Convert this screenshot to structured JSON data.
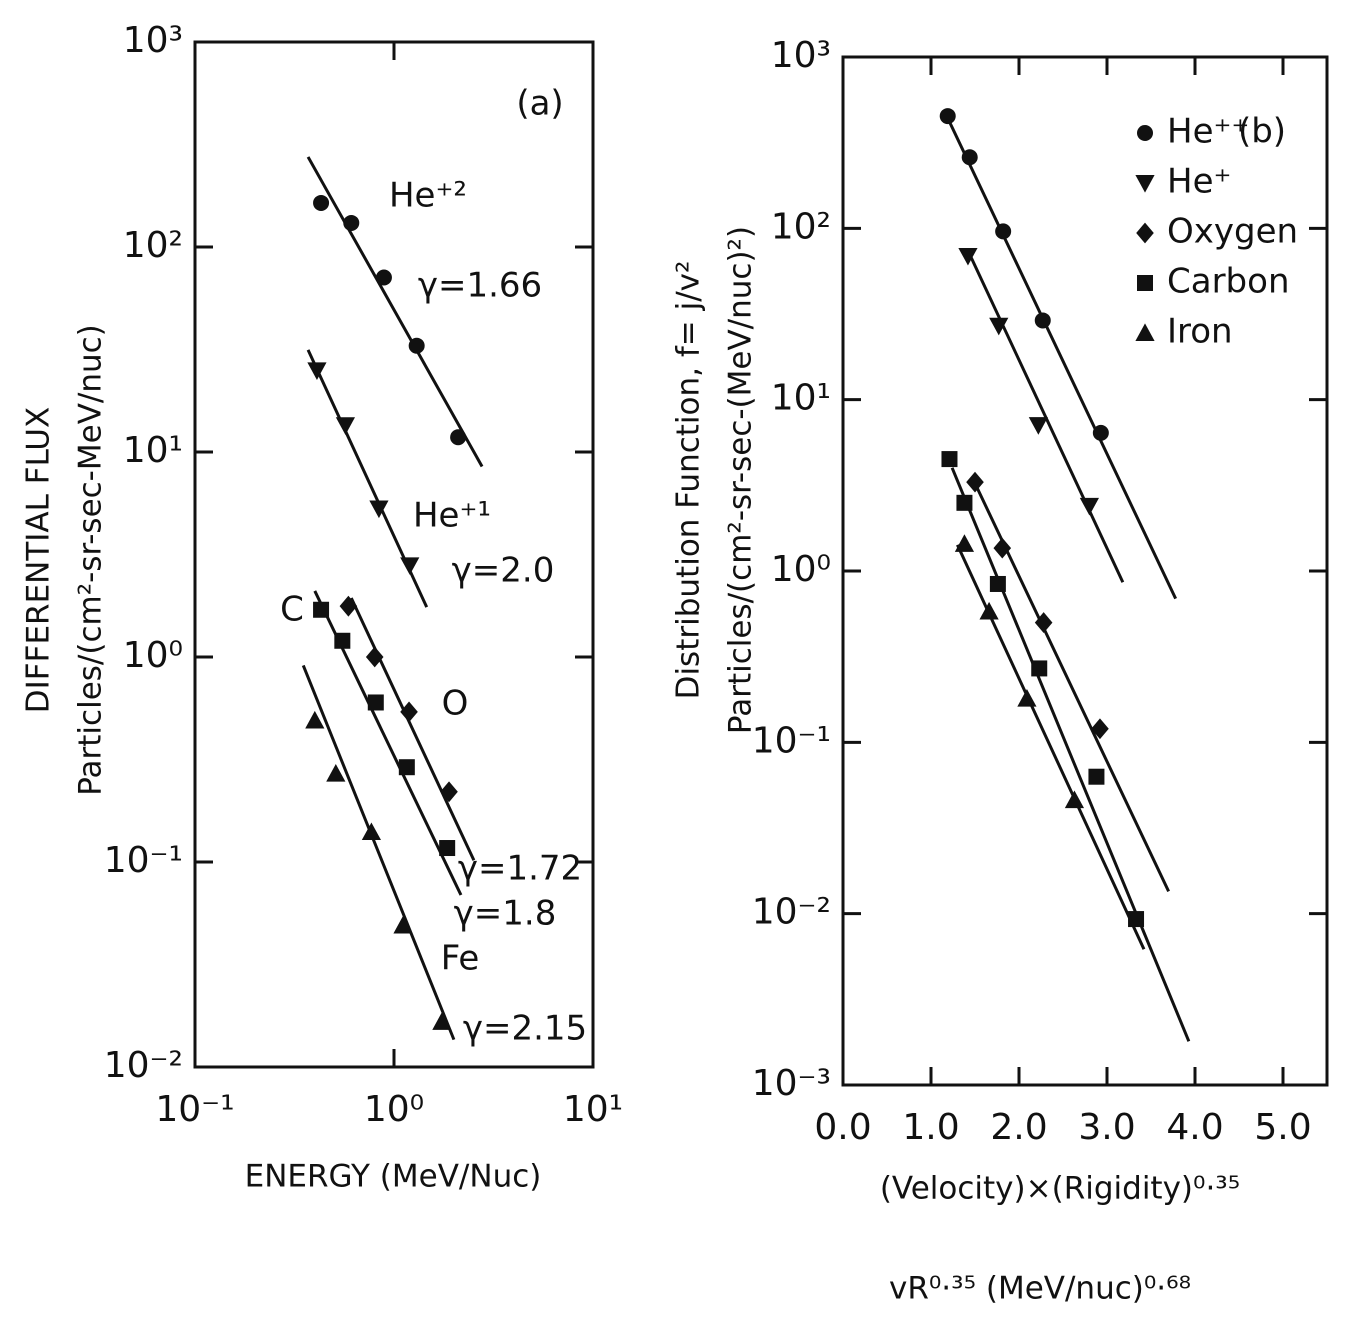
{
  "chart_data": [
    {
      "type": "scatter",
      "xscale": "log",
      "yscale": "log",
      "color": "#111111",
      "xlim": [
        0.1,
        10
      ],
      "ylim": [
        0.01,
        1000
      ],
      "xticks": [
        {
          "value": 0.1,
          "label": "10⁻¹"
        },
        {
          "value": 1,
          "label": "10⁰"
        },
        {
          "value": 10,
          "label": "10¹"
        }
      ],
      "yticks": [
        {
          "value": 0.01,
          "label": "10⁻²"
        },
        {
          "value": 0.1,
          "label": "10⁻¹"
        },
        {
          "value": 1,
          "label": "10⁰"
        },
        {
          "value": 10,
          "label": "10¹"
        },
        {
          "value": 100,
          "label": "10²"
        },
        {
          "value": 1000,
          "label": "10³"
        }
      ],
      "xlabel": [
        "ENERGY (MeV/Nuc)"
      ],
      "ylabel": [
        "DIFFERENTIAL FLUX",
        "Particles/(cm²-sr-sec-MeV/nuc)"
      ],
      "series": [
        {
          "name": "He⁺²",
          "marker": "circle",
          "x": [
            0.43,
            0.61,
            0.89,
            1.3,
            2.1
          ],
          "y": [
            164,
            131,
            71,
            33,
            11.8
          ],
          "fit": {
            "x": [
              0.37,
              2.77
            ],
            "y": [
              275,
              8.5
            ]
          }
        },
        {
          "name": "He⁺¹",
          "marker": "triangle-down",
          "x": [
            0.41,
            0.57,
            0.84,
            1.2
          ],
          "y": [
            25,
            13.5,
            5.3,
            2.8
          ],
          "fit": {
            "x": [
              0.37,
              1.46
            ],
            "y": [
              31.5,
              1.75
            ]
          }
        },
        {
          "name": "C",
          "marker": "square",
          "x": [
            0.43,
            0.55,
            0.81,
            1.16,
            1.85
          ],
          "y": [
            1.7,
            1.2,
            0.6,
            0.29,
            0.117
          ],
          "fit": {
            "x": [
              0.4,
              2.17
            ],
            "y": [
              2.1,
              0.069
            ]
          }
        },
        {
          "name": "O",
          "marker": "diamond",
          "x": [
            0.59,
            0.8,
            1.19,
            1.89
          ],
          "y": [
            1.77,
            1.0,
            0.54,
            0.22
          ],
          "fit": {
            "x": [
              0.61,
              2.52
            ],
            "y": [
              1.94,
              0.102
            ]
          }
        },
        {
          "name": "Fe",
          "marker": "triangle",
          "x": [
            0.4,
            0.51,
            0.77,
            1.11,
            1.74
          ],
          "y": [
            0.49,
            0.27,
            0.14,
            0.049,
            0.0166
          ],
          "fit": {
            "x": [
              0.35,
              2.0
            ],
            "y": [
              0.91,
              0.0136
            ]
          }
        }
      ],
      "annotations": [
        "(a)",
        "γ=1.66",
        "γ=2.0",
        "γ=1.72",
        "γ=1.8",
        "γ=2.15"
      ]
    },
    {
      "type": "scatter",
      "xscale": "linear",
      "yscale": "log",
      "color": "#111111",
      "legend": "upper right",
      "xlim": [
        0,
        5.5
      ],
      "ylim": [
        0.001,
        1000
      ],
      "xticks": [
        {
          "value": 0,
          "label": "0.0"
        },
        {
          "value": 1,
          "label": "1.0"
        },
        {
          "value": 2,
          "label": "2.0"
        },
        {
          "value": 3,
          "label": "3.0"
        },
        {
          "value": 4,
          "label": "4.0"
        },
        {
          "value": 5,
          "label": "5.0"
        }
      ],
      "yticks": [
        {
          "value": 0.001,
          "label": "10⁻³"
        },
        {
          "value": 0.01,
          "label": "10⁻²"
        },
        {
          "value": 0.1,
          "label": "10⁻¹"
        },
        {
          "value": 1,
          "label": "10⁰"
        },
        {
          "value": 10,
          "label": "10¹"
        },
        {
          "value": 100,
          "label": "10²"
        },
        {
          "value": 1000,
          "label": "10³"
        }
      ],
      "xlabel": [
        "(Velocity)×(Rigidity)⁰·³⁵",
        "vR⁰·³⁵ (MeV/nuc)⁰·⁶⁸"
      ],
      "ylabel": [
        "Distribution Function, f= j/v²",
        "Particles/(cm²-sr-sec-(MeV/nuc)²)"
      ],
      "series": [
        {
          "name": "He⁺⁺",
          "marker": "circle",
          "x": [
            1.19,
            1.44,
            1.82,
            2.27,
            2.93
          ],
          "y": [
            452,
            260,
            96,
            29,
            6.4
          ],
          "fit": {
            "x": [
              1.19,
              3.78
            ],
            "y": [
              440,
              0.69
            ]
          }
        },
        {
          "name": "He⁺",
          "marker": "triangle-down",
          "x": [
            1.42,
            1.77,
            2.22,
            2.8
          ],
          "y": [
            69,
            27,
            7.1,
            2.4
          ],
          "fit": {
            "x": [
              1.41,
              3.18
            ],
            "y": [
              76,
              0.86
            ]
          }
        },
        {
          "name": "Oxygen",
          "marker": "diamond",
          "x": [
            1.5,
            1.81,
            2.28,
            2.92
          ],
          "y": [
            3.3,
            1.36,
            0.5,
            0.12
          ],
          "fit": {
            "x": [
              1.47,
              3.7
            ],
            "y": [
              3.5,
              0.0135
            ]
          }
        },
        {
          "name": "Carbon",
          "marker": "square",
          "x": [
            1.21,
            1.38,
            1.76,
            2.23,
            2.88,
            3.33
          ],
          "y": [
            4.5,
            2.5,
            0.84,
            0.27,
            0.063,
            0.0093
          ],
          "fit": {
            "x": [
              1.24,
              3.93
            ],
            "y": [
              4.0,
              0.0018
            ]
          }
        },
        {
          "name": "Iron",
          "marker": "triangle",
          "x": [
            1.38,
            1.66,
            2.09,
            2.63
          ],
          "y": [
            1.44,
            0.58,
            0.18,
            0.046
          ],
          "fit": {
            "x": [
              1.3,
              3.42
            ],
            "y": [
              1.42,
              0.0062
            ]
          }
        }
      ],
      "annotations": [
        "(b)"
      ]
    }
  ]
}
